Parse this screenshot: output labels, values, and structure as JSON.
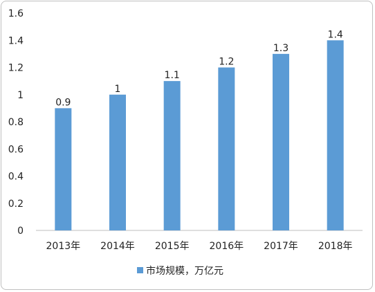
{
  "chart_data": {
    "type": "bar",
    "categories": [
      "2013年",
      "2014年",
      "2015年",
      "2016年",
      "2017年",
      "2018年"
    ],
    "series": [
      {
        "name": "市场规模，万亿元",
        "values": [
          0.9,
          1,
          1.1,
          1.2,
          1.3,
          1.4
        ],
        "color": "#5b9bd5"
      }
    ],
    "data_labels": [
      "0.9",
      "1",
      "1.1",
      "1.2",
      "1.3",
      "1.4"
    ],
    "y_ticks": [
      "0",
      "0.2",
      "0.4",
      "0.6",
      "0.8",
      "1",
      "1.2",
      "1.4",
      "1.6"
    ],
    "ylim": [
      0,
      1.6
    ],
    "grid": false,
    "legend_position": "bottom"
  }
}
